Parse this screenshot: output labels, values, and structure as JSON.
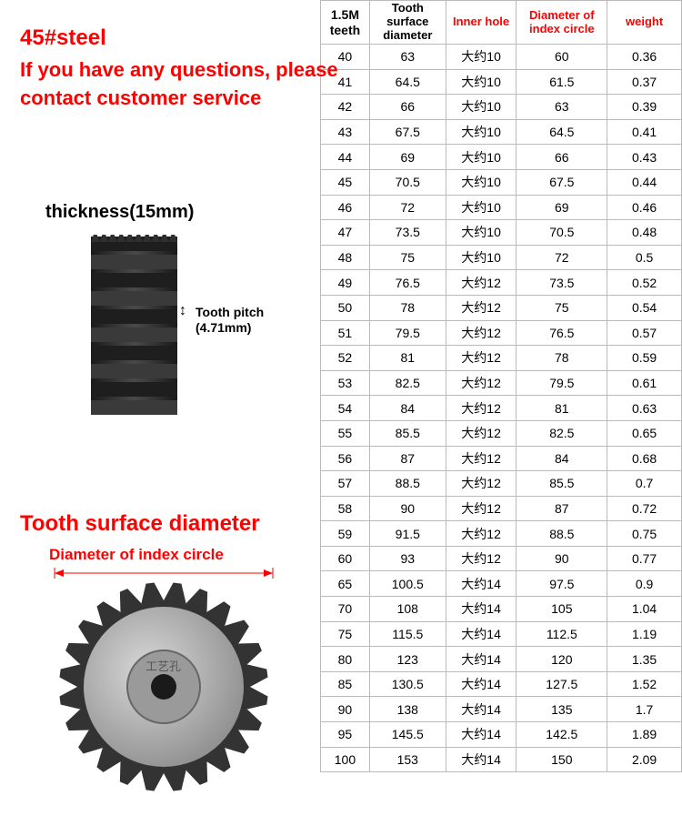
{
  "labels": {
    "steel": "45#steel",
    "subtitle": "If you have any questions, please contact customer service",
    "thickness": "thickness(15mm)",
    "tooth_pitch": "Tooth pitch\n(4.71mm)",
    "tooth_surface": "Tooth surface diameter",
    "index_circle": "Diameter of index circle",
    "inner_text": "工艺孔"
  },
  "headers": {
    "c1": "1.5M teeth",
    "c2": "Tooth surface diameter",
    "c3": "Inner hole",
    "c4": "Diameter of index circle",
    "c5": "weight"
  },
  "colors": {
    "red": "#ff0000",
    "black": "#000000",
    "border": "#bbbbbb",
    "gear_dark": "#2a2a2a",
    "gear_light": "#888888",
    "gear_face": "#b5b5b5"
  },
  "rows": [
    {
      "teeth": "40",
      "tsd": "63",
      "ih": "大约10",
      "dic": "60",
      "w": "0.36"
    },
    {
      "teeth": "41",
      "tsd": "64.5",
      "ih": "大约10",
      "dic": "61.5",
      "w": "0.37"
    },
    {
      "teeth": "42",
      "tsd": "66",
      "ih": "大约10",
      "dic": "63",
      "w": "0.39"
    },
    {
      "teeth": "43",
      "tsd": "67.5",
      "ih": "大约10",
      "dic": "64.5",
      "w": "0.41"
    },
    {
      "teeth": "44",
      "tsd": "69",
      "ih": "大约10",
      "dic": "66",
      "w": "0.43"
    },
    {
      "teeth": "45",
      "tsd": "70.5",
      "ih": "大约10",
      "dic": "67.5",
      "w": "0.44"
    },
    {
      "teeth": "46",
      "tsd": "72",
      "ih": "大约10",
      "dic": "69",
      "w": "0.46"
    },
    {
      "teeth": "47",
      "tsd": "73.5",
      "ih": "大约10",
      "dic": "70.5",
      "w": "0.48"
    },
    {
      "teeth": "48",
      "tsd": "75",
      "ih": "大约10",
      "dic": "72",
      "w": "0.5"
    },
    {
      "teeth": "49",
      "tsd": "76.5",
      "ih": "大约12",
      "dic": "73.5",
      "w": "0.52"
    },
    {
      "teeth": "50",
      "tsd": "78",
      "ih": "大约12",
      "dic": "75",
      "w": "0.54"
    },
    {
      "teeth": "51",
      "tsd": "79.5",
      "ih": "大约12",
      "dic": "76.5",
      "w": "0.57"
    },
    {
      "teeth": "52",
      "tsd": "81",
      "ih": "大约12",
      "dic": "78",
      "w": "0.59"
    },
    {
      "teeth": "53",
      "tsd": "82.5",
      "ih": "大约12",
      "dic": "79.5",
      "w": "0.61"
    },
    {
      "teeth": "54",
      "tsd": "84",
      "ih": "大约12",
      "dic": "81",
      "w": "0.63"
    },
    {
      "teeth": "55",
      "tsd": "85.5",
      "ih": "大约12",
      "dic": "82.5",
      "w": "0.65"
    },
    {
      "teeth": "56",
      "tsd": "87",
      "ih": "大约12",
      "dic": "84",
      "w": "0.68"
    },
    {
      "teeth": "57",
      "tsd": "88.5",
      "ih": "大约12",
      "dic": "85.5",
      "w": "0.7"
    },
    {
      "teeth": "58",
      "tsd": "90",
      "ih": "大约12",
      "dic": "87",
      "w": "0.72"
    },
    {
      "teeth": "59",
      "tsd": "91.5",
      "ih": "大约12",
      "dic": "88.5",
      "w": "0.75"
    },
    {
      "teeth": "60",
      "tsd": "93",
      "ih": "大约12",
      "dic": "90",
      "w": "0.77"
    },
    {
      "teeth": "65",
      "tsd": "100.5",
      "ih": "大约14",
      "dic": "97.5",
      "w": "0.9"
    },
    {
      "teeth": "70",
      "tsd": "108",
      "ih": "大约14",
      "dic": "105",
      "w": "1.04"
    },
    {
      "teeth": "75",
      "tsd": "115.5",
      "ih": "大约14",
      "dic": "112.5",
      "w": "1.19"
    },
    {
      "teeth": "80",
      "tsd": "123",
      "ih": "大约14",
      "dic": "120",
      "w": "1.35"
    },
    {
      "teeth": "85",
      "tsd": "130.5",
      "ih": "大约14",
      "dic": "127.5",
      "w": "1.52"
    },
    {
      "teeth": "90",
      "tsd": "138",
      "ih": "大约14",
      "dic": "135",
      "w": "1.7"
    },
    {
      "teeth": "95",
      "tsd": "145.5",
      "ih": "大约14",
      "dic": "142.5",
      "w": "1.89"
    },
    {
      "teeth": "100",
      "tsd": "153",
      "ih": "大约14",
      "dic": "150",
      "w": "2.09"
    }
  ],
  "gear_side": {
    "teeth_count": 10,
    "body_color": "#2f2f2f",
    "tooth_height": 18
  },
  "gear_front": {
    "teeth_count": 24,
    "outer_color": "#333333",
    "face_color": "#bcbcbc",
    "hub_color": "#9a9a9a",
    "hole_color": "#1a1a1a"
  }
}
